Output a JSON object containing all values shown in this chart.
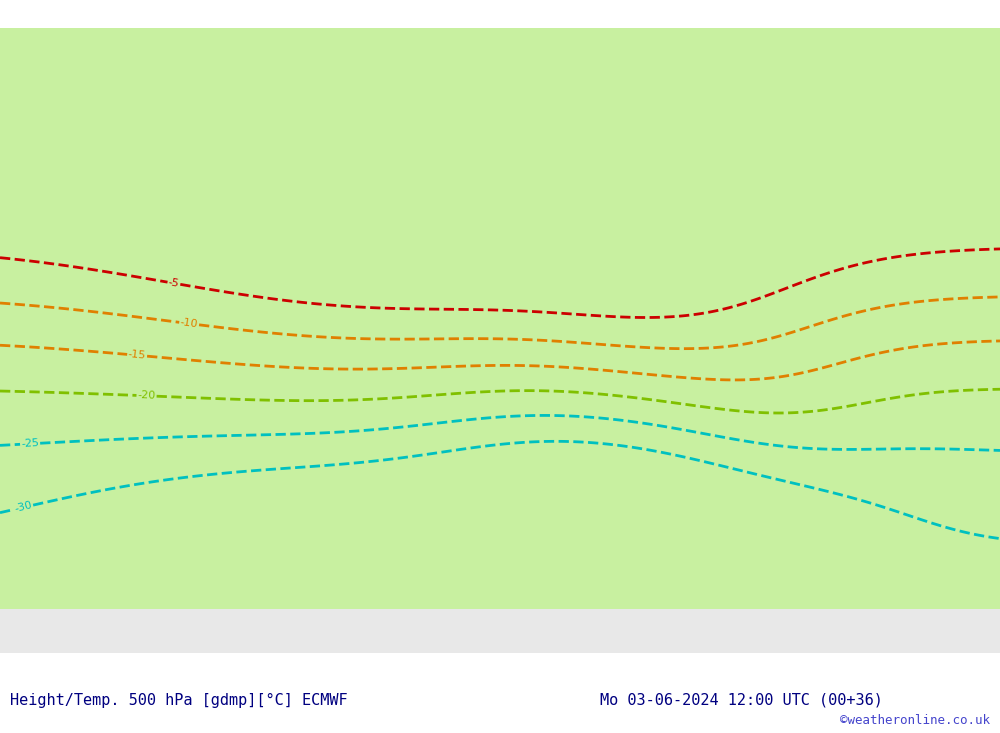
{
  "title_left": "Height/Temp. 500 hPa [gdmp][°C] ECMWF",
  "title_right": "Mo 03-06-2024 12:00 UTC (00+36)",
  "watermark": "©weatheronline.co.uk",
  "background_color": "#e8e8e8",
  "land_color": "#ebebeb",
  "ocean_color": "#e0e4e8",
  "green_fill_color": "#c8f0a0",
  "border_color": "#aaaaaa",
  "title_color": "#000080",
  "watermark_color": "#4444cc",
  "map_lon_min": 80,
  "map_lon_max": 200,
  "map_lat_min": -65,
  "map_lat_max": 10,
  "figsize": [
    10.0,
    7.33
  ],
  "dpi": 100,
  "height_contour_color": "black",
  "temp_red_color": "#cc0000",
  "temp_orange_color": "#e08000",
  "temp_green_color": "#80c000",
  "temp_cyan_color": "#00c0c0",
  "temp_blue_color": "#0040ff"
}
